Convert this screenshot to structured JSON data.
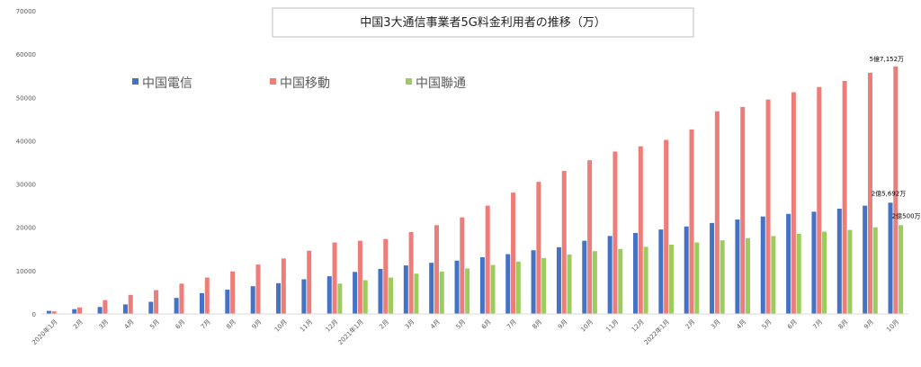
{
  "chart_data": {
    "type": "bar",
    "title": "中国3大通信事業者5G料金利用者の推移（万）",
    "xlabel": "",
    "ylabel": "",
    "ylim": [
      0,
      70000
    ],
    "yticks": [
      0,
      10000,
      20000,
      30000,
      40000,
      50000,
      60000,
      70000
    ],
    "grid": false,
    "legend_position": "top-left",
    "categories": [
      "2020年1月",
      "2月",
      "3月",
      "4月",
      "5月",
      "6月",
      "7月",
      "8月",
      "9月",
      "10月",
      "11月",
      "12月",
      "2021年1月",
      "2月",
      "3月",
      "4月",
      "5月",
      "6月",
      "7月",
      "8月",
      "9月",
      "10月",
      "11月",
      "12月",
      "2022年1月",
      "2月",
      "3月",
      "4月",
      "5月",
      "6月",
      "7月",
      "8月",
      "9月",
      "10月"
    ],
    "series": [
      {
        "name": "中国電信",
        "color": "#4472C4",
        "values": [
          700,
          1100,
          1600,
          2200,
          2800,
          3700,
          4800,
          5600,
          6400,
          7100,
          8000,
          8700,
          9700,
          10400,
          11200,
          11800,
          12300,
          13100,
          13800,
          14700,
          15400,
          16900,
          18000,
          18700,
          19500,
          20200,
          21000,
          21800,
          22500,
          23100,
          23600,
          24300,
          25000,
          25692
        ]
      },
      {
        "name": "中国移動",
        "color": "#ED7D78",
        "values": [
          600,
          1500,
          3200,
          4400,
          5500,
          7000,
          8400,
          9800,
          11400,
          12800,
          14600,
          16500,
          16900,
          17300,
          18900,
          20500,
          22300,
          25000,
          28000,
          30500,
          33000,
          35500,
          37500,
          38700,
          40200,
          42600,
          46800,
          47800,
          49500,
          51200,
          52400,
          53800,
          55700,
          57152
        ]
      },
      {
        "name": "中国聯通",
        "color": "#9ACD5E",
        "values": [
          null,
          null,
          null,
          null,
          null,
          null,
          null,
          null,
          null,
          null,
          null,
          7000,
          7800,
          8400,
          9300,
          9800,
          10500,
          11300,
          12100,
          12900,
          13700,
          14500,
          15000,
          15500,
          16000,
          16500,
          17000,
          17500,
          18000,
          18500,
          19000,
          19400,
          20000,
          20500
        ]
      }
    ],
    "annotations": [
      {
        "text": "5億7,152万",
        "series": 1,
        "index": 33
      },
      {
        "text": "2億5,692万",
        "series": 0,
        "index": 33
      },
      {
        "text": "2億500万",
        "series": 2,
        "index": 33
      }
    ]
  }
}
